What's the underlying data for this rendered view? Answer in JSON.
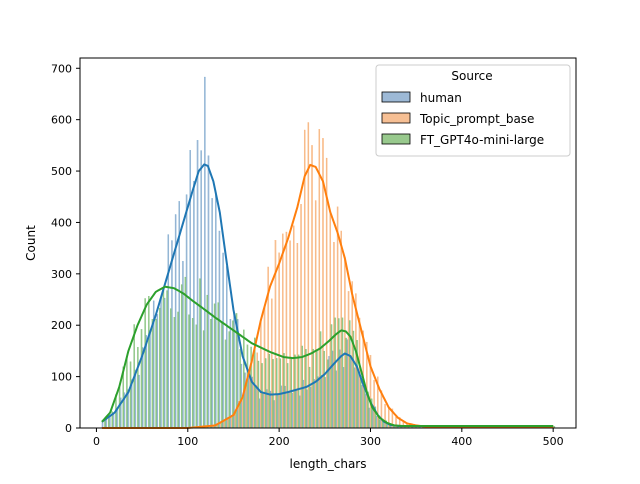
{
  "chart_data": {
    "type": "histogram",
    "title": "",
    "xlabel": "length_chars",
    "ylabel": "Count",
    "xlim": [
      -18,
      525
    ],
    "ylim": [
      0,
      720
    ],
    "xticks": [
      0,
      100,
      200,
      300,
      400,
      500
    ],
    "yticks": [
      0,
      100,
      200,
      300,
      400,
      500,
      600,
      700
    ],
    "bin_width": 4,
    "bin_start": 6,
    "bin_end": 502,
    "legend": {
      "title": "Source",
      "position": "top-right"
    },
    "series": [
      {
        "name": "human",
        "fill": "#9db9d6",
        "edge": "#1f77b4",
        "line": "#1f77b4",
        "kde": {
          "x": [
            6,
            20,
            35,
            50,
            65,
            80,
            95,
            105,
            112,
            118,
            122,
            128,
            135,
            142,
            150,
            160,
            170,
            180,
            190,
            200,
            210,
            220,
            230,
            240,
            250,
            260,
            268,
            272,
            278,
            285,
            292,
            300,
            308,
            315,
            322,
            330,
            340,
            350,
            400,
            450,
            500
          ],
          "y": [
            12,
            30,
            70,
            140,
            220,
            310,
            400,
            460,
            500,
            513,
            510,
            480,
            420,
            330,
            230,
            140,
            90,
            70,
            65,
            66,
            70,
            75,
            80,
            90,
            105,
            125,
            140,
            145,
            140,
            120,
            85,
            50,
            25,
            12,
            6,
            4,
            4,
            4,
            4,
            4,
            4
          ]
        },
        "spikes": [
          {
            "x": 108,
            "y": 480
          },
          {
            "x": 113,
            "y": 560
          },
          {
            "x": 117,
            "y": 540
          },
          {
            "x": 120,
            "y": 683
          },
          {
            "x": 124,
            "y": 530
          }
        ]
      },
      {
        "name": "Topic_prompt_base",
        "fill": "#f6bf94",
        "edge": "#ff7f0e",
        "line": "#ff7f0e",
        "kde": {
          "x": [
            6,
            100,
            130,
            150,
            160,
            170,
            180,
            190,
            200,
            210,
            220,
            228,
            234,
            240,
            248,
            256,
            264,
            272,
            280,
            290,
            300,
            310,
            320,
            330,
            340,
            350,
            360,
            380,
            400,
            450,
            500
          ],
          "y": [
            0,
            0,
            5,
            25,
            60,
            130,
            210,
            275,
            320,
            370,
            430,
            490,
            512,
            508,
            480,
            420,
            380,
            330,
            260,
            190,
            120,
            75,
            40,
            20,
            9,
            5,
            3,
            3,
            3,
            3,
            3
          ]
        },
        "spikes": [
          {
            "x": 228,
            "y": 580
          },
          {
            "x": 236,
            "y": 550
          },
          {
            "x": 244,
            "y": 540
          }
        ]
      },
      {
        "name": "FT_GPT4o-mini-large",
        "fill": "#98c98d",
        "edge": "#2ca02c",
        "line": "#2ca02c",
        "kde": {
          "x": [
            6,
            15,
            25,
            35,
            45,
            55,
            65,
            75,
            85,
            95,
            105,
            115,
            130,
            150,
            170,
            190,
            205,
            215,
            225,
            235,
            245,
            255,
            262,
            268,
            273,
            278,
            284,
            290,
            296,
            302,
            310,
            318,
            326,
            335,
            345,
            360,
            400,
            450,
            500
          ],
          "y": [
            12,
            30,
            80,
            150,
            200,
            240,
            265,
            275,
            272,
            262,
            248,
            235,
            215,
            190,
            165,
            148,
            138,
            136,
            138,
            145,
            155,
            170,
            182,
            190,
            188,
            178,
            150,
            110,
            70,
            40,
            20,
            10,
            5,
            4,
            4,
            4,
            4,
            4,
            4
          ]
        },
        "spikes": [
          {
            "x": 270,
            "y": 230
          },
          {
            "x": 282,
            "y": 250
          }
        ]
      }
    ]
  }
}
